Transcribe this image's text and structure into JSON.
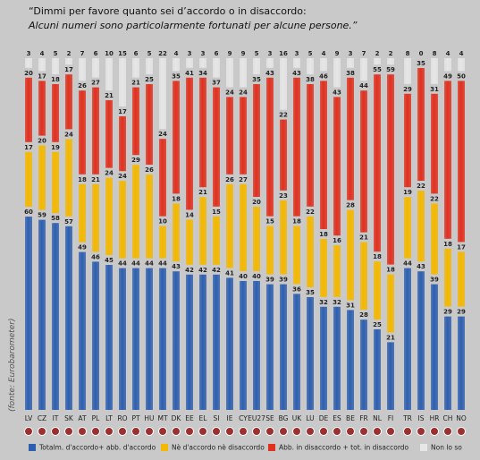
{
  "chart_data": {
    "type": "stacked-bar",
    "title": "“Dimmi per favore quanto sei d’accordo o in disaccordo: ",
    "title_italic": "Alcuni numeri sono particolarmente fortunati per alcune persone.”",
    "source": "(fonte: Eurobarometer)",
    "categories": [
      "LV",
      "CZ",
      "IT",
      "SK",
      "AT",
      "PL",
      "LT",
      "RO",
      "PT",
      "HU",
      "MT",
      "DK",
      "EE",
      "EL",
      "SI",
      "IE",
      "CY",
      "EU27",
      "SE",
      "BG",
      "UK",
      "LU",
      "DE",
      "ES",
      "BE",
      "FR",
      "NL",
      "FI",
      "TR",
      "IS",
      "HR",
      "CH",
      "NO"
    ],
    "series": [
      {
        "name": "Totalm. d'accordo+ abb. d'accordo",
        "color": "#2e5faf",
        "values": [
          60,
          59,
          58,
          57,
          49,
          46,
          45,
          44,
          44,
          44,
          44,
          43,
          42,
          42,
          42,
          41,
          40,
          40,
          39,
          39,
          36,
          35,
          32,
          32,
          31,
          28,
          25,
          21,
          44,
          43,
          39,
          29,
          29
        ]
      },
      {
        "name": "Nè d'accordo nè disaccordo",
        "color": "#f4b800",
        "values": [
          17,
          20,
          19,
          24,
          18,
          21,
          24,
          24,
          29,
          26,
          10,
          18,
          14,
          21,
          15,
          26,
          27,
          20,
          15,
          23,
          18,
          22,
          18,
          16,
          28,
          21,
          18,
          18,
          19,
          22,
          22,
          18,
          17
        ]
      },
      {
        "name": "Abb. in disaccordo + tot. in disaccordo",
        "color": "#e0301e",
        "values": [
          20,
          17,
          18,
          17,
          26,
          27,
          21,
          17,
          21,
          25,
          24,
          35,
          41,
          34,
          37,
          24,
          24,
          35,
          43,
          22,
          43,
          38,
          46,
          43,
          38,
          44,
          55,
          59,
          29,
          35,
          31,
          49,
          50
        ]
      },
      {
        "name": "Non lo so",
        "color": "#e6e6e6",
        "values": [
          3,
          4,
          5,
          2,
          7,
          6,
          10,
          15,
          6,
          5,
          22,
          4,
          3,
          3,
          6,
          9,
          9,
          5,
          3,
          16,
          3,
          5,
          4,
          9,
          3,
          7,
          2,
          2,
          8,
          0,
          8,
          4,
          4
        ]
      }
    ]
  }
}
